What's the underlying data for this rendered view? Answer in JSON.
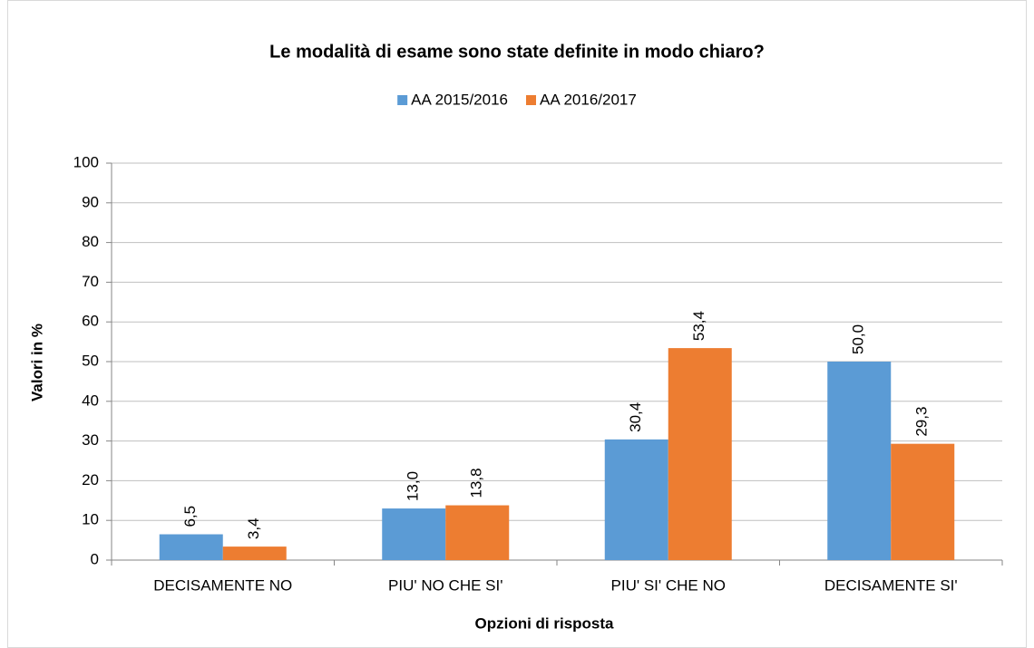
{
  "chart_data": {
    "type": "bar",
    "title": "Le modalità di esame sono state definite in modo chiaro?",
    "x_label": "Opzioni di risposta",
    "y_label": "Valori in %",
    "categories": [
      "DECISAMENTE NO",
      "PIU' NO CHE SI'",
      "PIU' SI' CHE NO",
      "DECISAMENTE SI'"
    ],
    "series": [
      {
        "name": "AA 2015/2016",
        "color": "#5b9bd5",
        "values": [
          6.5,
          13.0,
          30.4,
          50.0
        ],
        "value_labels": [
          "6,5",
          "13,0",
          "30,4",
          "50,0"
        ]
      },
      {
        "name": "AA 2016/2017",
        "color": "#ed7d31",
        "values": [
          3.4,
          13.8,
          53.4,
          29.3
        ],
        "value_labels": [
          "3,4",
          "13,8",
          "53,4",
          "29,3"
        ]
      }
    ],
    "ylim": [
      0,
      100
    ],
    "yticks": [
      0,
      10,
      20,
      30,
      40,
      50,
      60,
      70,
      80,
      90,
      100
    ],
    "grid": true,
    "legend": "top"
  }
}
